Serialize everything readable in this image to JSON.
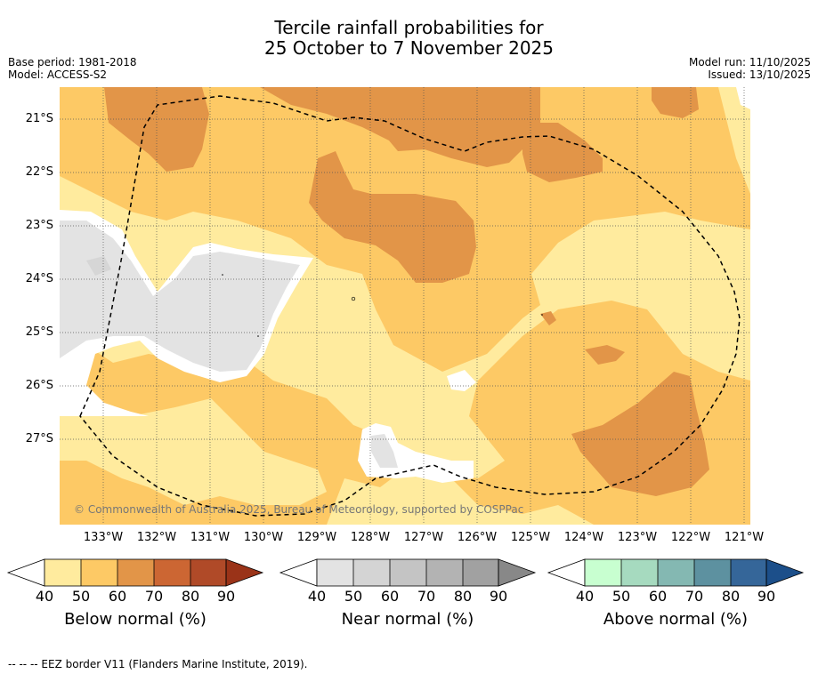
{
  "title_line1": "Tercile rainfall probabilities for",
  "title_line2": "25 October to 7 November 2025",
  "base_period": "Base period: 1981-2018",
  "model": "Model: ACCESS-S2",
  "model_run": "Model run: 11/10/2025",
  "issued": "Issued: 13/10/2025",
  "map": {
    "lat_labels": [
      "21°S",
      "22°S",
      "23°S",
      "24°S",
      "25°S",
      "26°S",
      "27°S"
    ],
    "lon_labels": [
      "133°W",
      "132°W",
      "131°W",
      "130°W",
      "129°W",
      "128°W",
      "127°W",
      "126°W",
      "125°W",
      "124°W",
      "123°W",
      "122°W",
      "121°W"
    ],
    "credit": "© Commonwealth of Australia 2025, Bureau of Meteorology, supported by COSPPac",
    "colors": {
      "below_40_50": "#ffeb9e",
      "below_50_60": "#fdc965",
      "below_60_70": "#e29548",
      "near_40_50": "#e3e3e3",
      "white": "#ffffff"
    }
  },
  "colorbars": [
    {
      "title": "Below normal (%)",
      "ticks": [
        "40",
        "50",
        "60",
        "70",
        "80",
        "90"
      ],
      "colors": [
        "#ffeb9e",
        "#fdc965",
        "#e29548",
        "#cc6633",
        "#b04a28",
        "#9a3318"
      ]
    },
    {
      "title": "Near normal (%)",
      "ticks": [
        "40",
        "50",
        "60",
        "70",
        "80",
        "90"
      ],
      "colors": [
        "#e3e3e3",
        "#d4d4d4",
        "#c4c4c4",
        "#b3b3b3",
        "#a1a1a1",
        "#888888"
      ]
    },
    {
      "title": "Above normal (%)",
      "ticks": [
        "40",
        "50",
        "60",
        "70",
        "80",
        "90"
      ],
      "colors": [
        "#c8ffd0",
        "#a6dabf",
        "#84b8b2",
        "#5d91a0",
        "#356699",
        "#1c4f8a"
      ]
    }
  ],
  "footer": "--  --  -- EEZ border V11 (Flanders Marine Institute, 2019)."
}
